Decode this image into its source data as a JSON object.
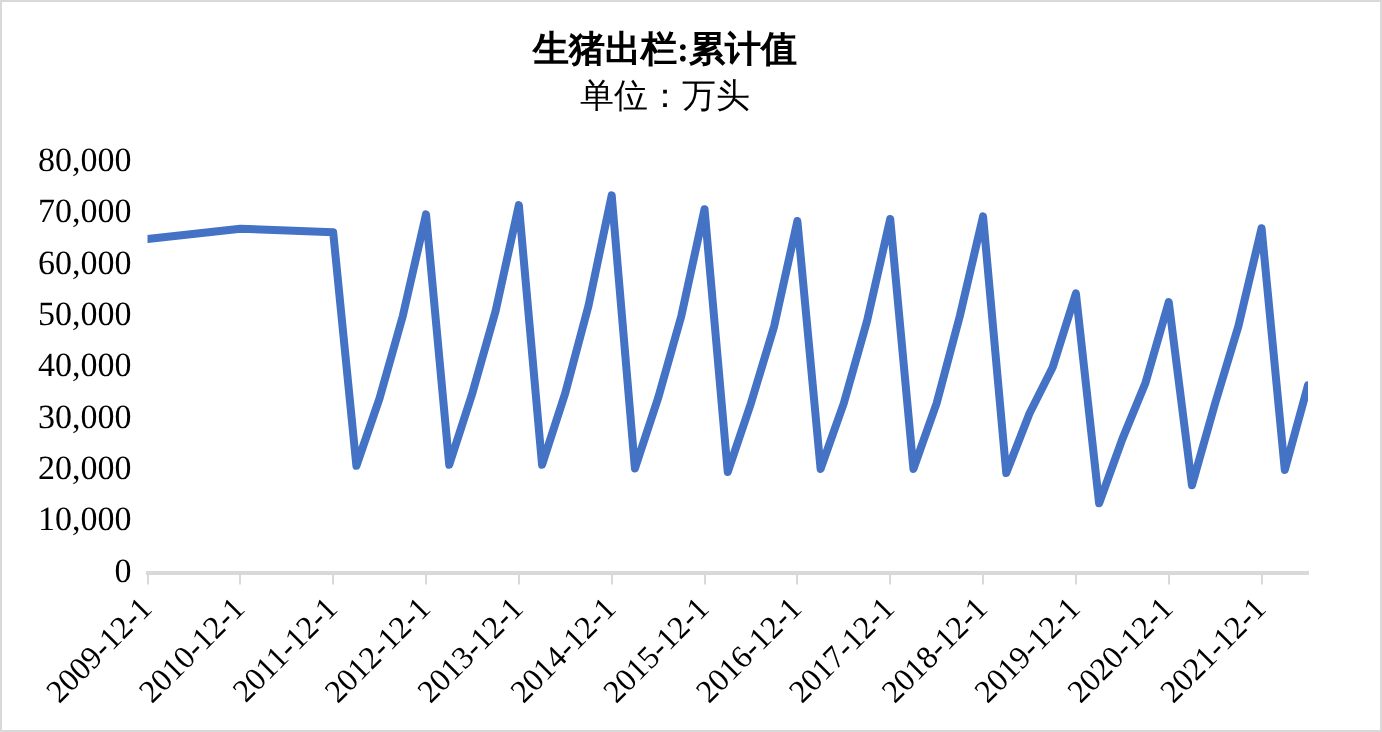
{
  "chart_data": {
    "type": "line",
    "title": "生猪出栏:累计值",
    "subtitle": "单位：万头",
    "x": [
      "2009-12-01",
      "2010-12-01",
      "2011-12-01",
      "2012-03-01",
      "2012-06-01",
      "2012-09-01",
      "2012-12-01",
      "2013-03-01",
      "2013-06-01",
      "2013-09-01",
      "2013-12-01",
      "2014-03-01",
      "2014-06-01",
      "2014-09-01",
      "2014-12-01",
      "2015-03-01",
      "2015-06-01",
      "2015-09-01",
      "2015-12-01",
      "2016-03-01",
      "2016-06-01",
      "2016-09-01",
      "2016-12-01",
      "2017-03-01",
      "2017-06-01",
      "2017-09-01",
      "2017-12-01",
      "2018-03-01",
      "2018-06-01",
      "2018-09-01",
      "2018-12-01",
      "2019-03-01",
      "2019-06-01",
      "2019-09-01",
      "2019-12-01",
      "2020-03-01",
      "2020-06-01",
      "2020-09-01",
      "2020-12-01",
      "2021-03-01",
      "2021-06-01",
      "2021-09-01",
      "2021-12-01",
      "2022-03-01",
      "2022-06-01"
    ],
    "series": [
      {
        "color": "#4472c4",
        "values": [
          65000,
          67000,
          66300,
          20800,
          34000,
          50000,
          69800,
          21000,
          35000,
          51000,
          71600,
          21000,
          35000,
          52000,
          73500,
          20300,
          34000,
          50000,
          70800,
          19600,
          33000,
          48000,
          68500,
          20200,
          33000,
          49000,
          68900,
          20200,
          33000,
          50000,
          69400,
          19400,
          31000,
          40000,
          54400,
          13500,
          26000,
          37000,
          52700,
          17000,
          33000,
          48000,
          67100,
          20000,
          36500
        ]
      }
    ],
    "xlim": [
      "2009-12-01",
      "2022-06-01"
    ],
    "xticks": [
      {
        "value": "2009-12-01",
        "label": "2009-12-1"
      },
      {
        "value": "2010-12-01",
        "label": "2010-12-1"
      },
      {
        "value": "2011-12-01",
        "label": "2011-12-1"
      },
      {
        "value": "2012-12-01",
        "label": "2012-12-1"
      },
      {
        "value": "2013-12-01",
        "label": "2013-12-1"
      },
      {
        "value": "2014-12-01",
        "label": "2014-12-1"
      },
      {
        "value": "2015-12-01",
        "label": "2015-12-1"
      },
      {
        "value": "2016-12-01",
        "label": "2016-12-1"
      },
      {
        "value": "2017-12-01",
        "label": "2017-12-1"
      },
      {
        "value": "2018-12-01",
        "label": "2018-12-1"
      },
      {
        "value": "2019-12-01",
        "label": "2019-12-1"
      },
      {
        "value": "2020-12-01",
        "label": "2020-12-1"
      },
      {
        "value": "2021-12-01",
        "label": "2021-12-1"
      }
    ],
    "ylim": [
      0,
      80000
    ],
    "yticks": [
      0,
      {
        "value": 10000,
        "label": "10,000"
      },
      {
        "value": 20000,
        "label": "20,000"
      },
      {
        "value": 30000,
        "label": "30,000"
      },
      {
        "value": 40000,
        "label": "40,000"
      },
      {
        "value": 50000,
        "label": "50,000"
      },
      {
        "value": 60000,
        "label": "60,000"
      },
      {
        "value": 70000,
        "label": "70,000"
      },
      {
        "value": 80000,
        "label": "80,000"
      }
    ],
    "grid": false,
    "legend": false,
    "marker": "none",
    "line_style": "solid"
  }
}
